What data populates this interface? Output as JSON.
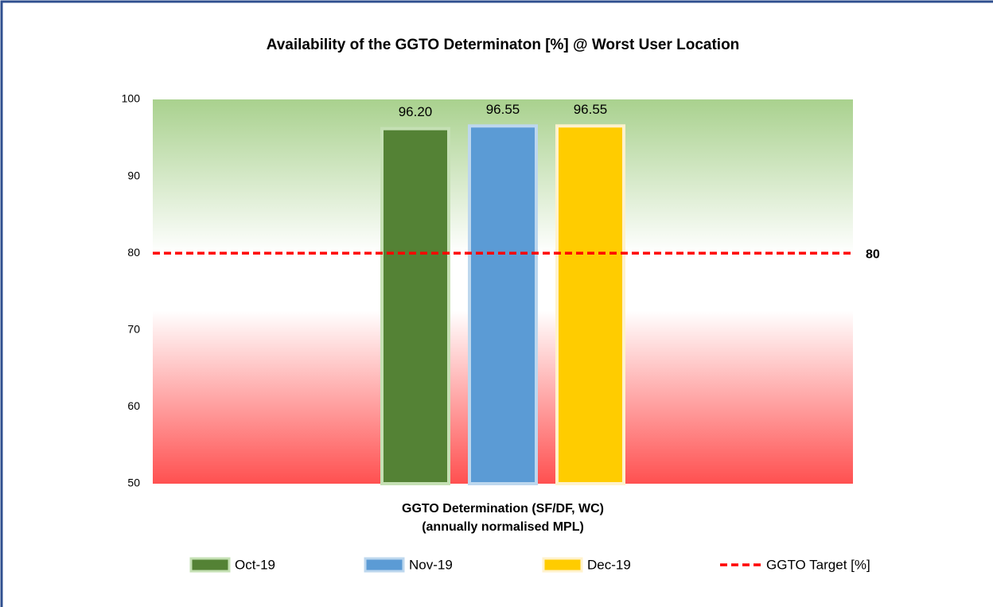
{
  "chart_data": {
    "type": "bar",
    "title": "Availability of the GGTO Determinaton [%]   @ Worst User Location",
    "xlabel": [
      "GGTO Determination (SF/DF, WC)",
      "(annually normalised MPL)"
    ],
    "series": [
      {
        "name": "Oct-19",
        "color": "#548235",
        "values": [
          96.2
        ],
        "value_labels": [
          "96.20"
        ]
      },
      {
        "name": "Nov-19",
        "color": "#5b9bd5",
        "values": [
          96.55
        ],
        "value_labels": [
          "96.55"
        ]
      },
      {
        "name": "Dec-19",
        "color": "#ffcc00",
        "values": [
          96.55
        ],
        "value_labels": [
          "96.55"
        ]
      }
    ],
    "target": {
      "name": "GGTO Target [%]",
      "value": 80,
      "color": "#ff0000"
    },
    "ylim": [
      50,
      100
    ],
    "yticks": [
      50,
      60,
      70,
      80,
      90,
      100
    ],
    "grid": false
  }
}
